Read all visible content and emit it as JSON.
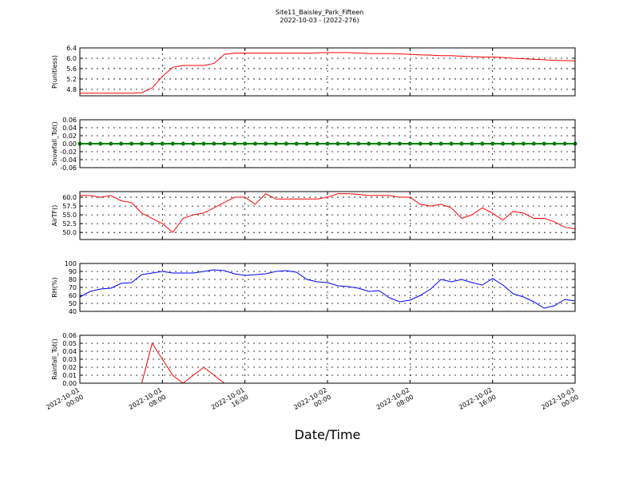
{
  "title": "Site11_Baisley_Park_Fifteen",
  "subtitle": "2022-10-03 - (2022-276)",
  "xlabel": "Date/Time",
  "xlim": [
    "2022-10-01 00:00",
    "2022-10-03 00:00"
  ],
  "xticks": [
    "2022-10-01 00:00",
    "2022-10-01 08:00",
    "2022-10-01 16:00",
    "2022-10-02 00:00",
    "2022-10-02 08:00",
    "2022-10-02 16:00",
    "2022-10-03 00:00"
  ],
  "x": [
    "2022-10-01 00:00",
    "2022-10-01 01:00",
    "2022-10-01 02:00",
    "2022-10-01 03:00",
    "2022-10-01 04:00",
    "2022-10-01 05:00",
    "2022-10-01 06:00",
    "2022-10-01 07:00",
    "2022-10-01 08:00",
    "2022-10-01 09:00",
    "2022-10-01 10:00",
    "2022-10-01 11:00",
    "2022-10-01 12:00",
    "2022-10-01 13:00",
    "2022-10-01 14:00",
    "2022-10-01 15:00",
    "2022-10-01 16:00",
    "2022-10-01 17:00",
    "2022-10-01 18:00",
    "2022-10-01 19:00",
    "2022-10-01 20:00",
    "2022-10-01 21:00",
    "2022-10-01 22:00",
    "2022-10-01 23:00",
    "2022-10-02 00:00",
    "2022-10-02 01:00",
    "2022-10-02 02:00",
    "2022-10-02 03:00",
    "2022-10-02 04:00",
    "2022-10-02 05:00",
    "2022-10-02 06:00",
    "2022-10-02 07:00",
    "2022-10-02 08:00",
    "2022-10-02 09:00",
    "2022-10-02 10:00",
    "2022-10-02 11:00",
    "2022-10-02 12:00",
    "2022-10-02 13:00",
    "2022-10-02 14:00",
    "2022-10-02 15:00",
    "2022-10-02 16:00",
    "2022-10-02 17:00",
    "2022-10-02 18:00",
    "2022-10-02 19:00",
    "2022-10-02 20:00",
    "2022-10-02 21:00",
    "2022-10-02 22:00",
    "2022-10-02 23:00",
    "2022-10-03 00:00"
  ],
  "chart_data": [
    {
      "type": "line",
      "ylabel": "P(unitless)",
      "color": "#ff0000",
      "ylim": [
        4.55,
        6.4
      ],
      "yticks": [
        4.8,
        5.2,
        5.6,
        {
          "value": 6,
          "label": "6.0"
        },
        6.4
      ],
      "values": [
        4.65,
        4.65,
        4.65,
        4.65,
        4.65,
        4.65,
        4.67,
        4.85,
        5.3,
        5.65,
        5.72,
        5.72,
        5.72,
        5.8,
        6.15,
        6.2,
        6.2,
        6.2,
        6.2,
        6.2,
        6.2,
        6.2,
        6.2,
        6.21,
        6.22,
        6.22,
        6.22,
        6.2,
        6.18,
        6.18,
        6.18,
        6.17,
        6.15,
        6.13,
        6.12,
        6.1,
        6.1,
        6.08,
        6.06,
        6.05,
        6.05,
        6.03,
        6.0,
        5.98,
        5.96,
        5.94,
        5.92,
        5.91,
        5.9
      ]
    },
    {
      "type": "line",
      "ylabel": "Snowfall_Tot()",
      "color": "#008000",
      "marker": "o",
      "ylim": [
        -0.06,
        0.06
      ],
      "yticks": [
        -0.06,
        -0.04,
        -0.02,
        {
          "value": 0,
          "label": "0.00"
        },
        0.02,
        0.04,
        0.06
      ],
      "values": [
        0,
        0,
        0,
        0,
        0,
        0,
        0,
        0,
        0,
        0,
        0,
        0,
        0,
        0,
        0,
        0,
        0,
        0,
        0,
        0,
        0,
        0,
        0,
        0,
        0,
        0,
        0,
        0,
        0,
        0,
        0,
        0,
        0,
        0,
        0,
        0,
        0,
        0,
        0,
        0,
        0,
        0,
        0,
        0,
        0,
        0,
        0,
        0,
        0
      ]
    },
    {
      "type": "line",
      "ylabel": "AirTF()",
      "color": "#ff0000",
      "ylim": [
        48,
        61.6
      ],
      "yticks": [
        {
          "value": 50,
          "label": "50.0"
        },
        52.5,
        {
          "value": 55,
          "label": "55.0"
        },
        57.5,
        {
          "value": 60,
          "label": "60.0"
        }
      ],
      "values": [
        60.5,
        60.5,
        60,
        60.5,
        59,
        58.5,
        55.5,
        54,
        52.5,
        50,
        54,
        55,
        55.5,
        57,
        58.5,
        60,
        60,
        58,
        61,
        59.5,
        59.5,
        59.5,
        59.5,
        59.5,
        60,
        61,
        61,
        60.8,
        60.5,
        60.5,
        60.5,
        60,
        60,
        58,
        57.5,
        58,
        57,
        54,
        55,
        57,
        55.5,
        53.5,
        56,
        55.5,
        54,
        54,
        53,
        51.5,
        51
      ]
    },
    {
      "type": "line",
      "ylabel": "RH(%)",
      "color": "#0000ff",
      "ylim": [
        40,
        100
      ],
      "yticks": [
        40,
        50,
        60,
        70,
        80,
        90,
        100
      ],
      "values": [
        58,
        65,
        68,
        69,
        75,
        76,
        86,
        88,
        90,
        88,
        88,
        88,
        90,
        92,
        91,
        87,
        85,
        86,
        87,
        90,
        91,
        89,
        80,
        77,
        76,
        72,
        71,
        69,
        65,
        66,
        57,
        52,
        54,
        60,
        68,
        80,
        77,
        80,
        76,
        73,
        81,
        73,
        62,
        58,
        52,
        44,
        47,
        55,
        53
      ]
    },
    {
      "type": "line",
      "ylabel": "Rainfall_Tot()",
      "color": "#ff0000",
      "ylim": [
        0,
        0.06
      ],
      "yticks": [
        {
          "value": 0,
          "label": "0.00"
        },
        0.01,
        0.02,
        0.03,
        0.04,
        0.05,
        0.06
      ],
      "values": [
        0,
        0,
        0,
        0,
        0,
        0,
        0,
        0.05,
        0.03,
        0.01,
        0,
        0.01,
        0.02,
        0.01,
        0,
        0,
        0,
        0,
        0,
        0,
        0,
        0,
        0,
        0,
        0,
        0,
        0,
        0,
        0,
        0,
        0,
        0,
        0,
        0,
        0,
        0,
        0,
        0,
        0,
        0,
        0,
        0,
        0,
        0,
        0,
        0,
        0,
        0,
        0
      ]
    }
  ]
}
